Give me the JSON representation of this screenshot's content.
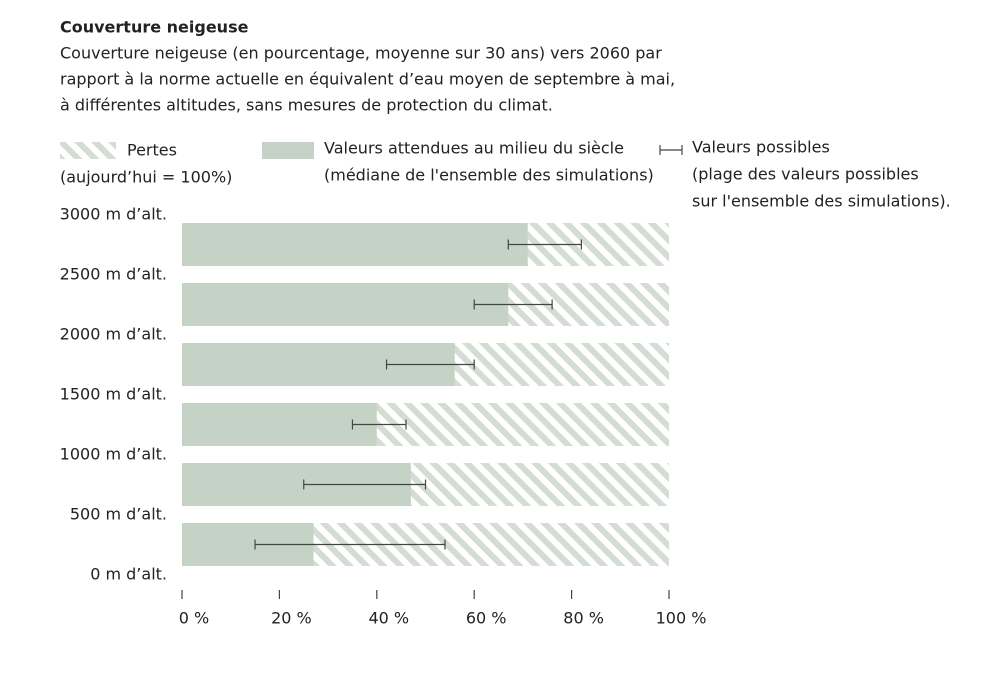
{
  "chart_data": {
    "type": "bar",
    "title": "Couverture neigeuse",
    "subtitle": [
      "Couverture neigeuse (en pourcentage, moyenne sur 30 ans) vers 2060 par",
      "rapport à la norme actuelle en équivalent d’eau moyen de septembre à mai,",
      "à différentes altitudes, sans mesures de protection du climat."
    ],
    "legend": [
      {
        "name": [
          "Pertes",
          "(aujourd’hui = 100%)"
        ]
      },
      {
        "name": [
          "Valeurs attendues au milieu du siècle",
          "(médiane de l'ensemble des simulations)"
        ]
      },
      {
        "name": [
          "Valeurs possibles",
          "(plage des valeurs possibles",
          "sur l'ensemble  des simulations)."
        ]
      }
    ],
    "altitude_labels": [
      "3000 m d’alt.",
      "2500 m d’alt.",
      "2000 m d’alt.",
      "1500 m d’alt.",
      "1000 m d’alt.",
      "500 m d’alt.",
      "0 m d’alt."
    ],
    "values": [
      71,
      67,
      56,
      40,
      47,
      27
    ],
    "range_low": [
      67,
      60,
      42,
      35,
      25,
      15
    ],
    "range_high": [
      82,
      76,
      60,
      46,
      50,
      54
    ],
    "color": "#c5d3c6",
    "loss_color": "#d3ddd3",
    "xlim": [
      0,
      100
    ],
    "xticks": [
      {
        "value": 0,
        "label": "0 %"
      },
      {
        "value": 20,
        "label": "20 %"
      },
      {
        "value": 40,
        "label": "40 %"
      },
      {
        "value": 60,
        "label": "60 %"
      },
      {
        "value": 80,
        "label": "80 %"
      },
      {
        "value": 100,
        "label": "100 %"
      }
    ]
  }
}
